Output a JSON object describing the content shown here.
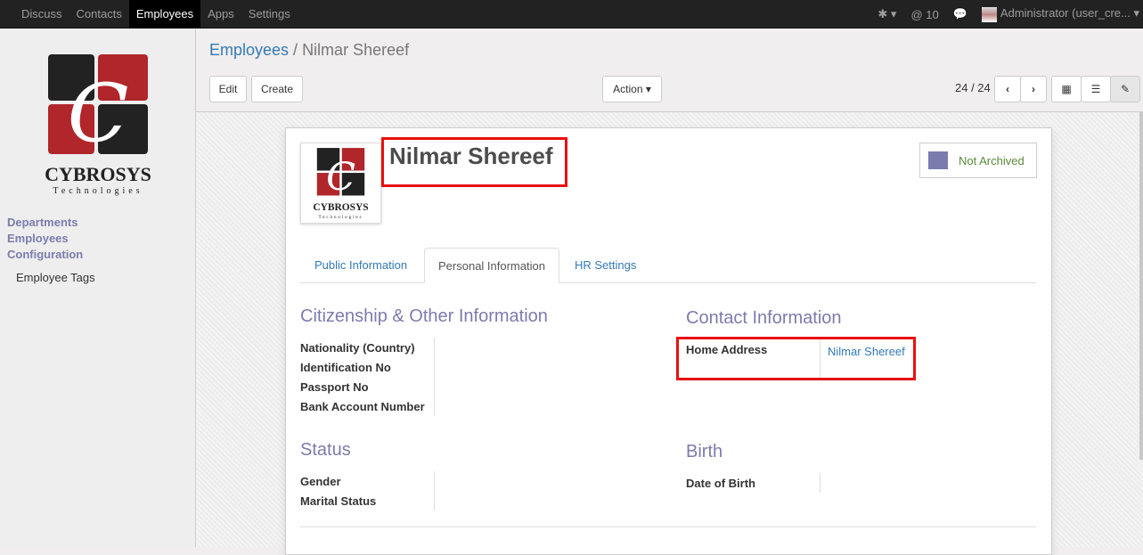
{
  "topnav": {
    "items": [
      "Discuss",
      "Contacts",
      "Employees",
      "Apps",
      "Settings"
    ],
    "active": "Employees",
    "mentions": "10",
    "user": "Administrator (user_cre..."
  },
  "sidebar": {
    "logo_text": "CYBROSYS",
    "logo_sub": "Technologies",
    "sections": [
      "Departments",
      "Employees",
      "Configuration"
    ],
    "sub_items": [
      "Employee Tags"
    ]
  },
  "control": {
    "breadcrumb_parent": "Employees",
    "breadcrumb_current": "Nilmar Shereef",
    "edit": "Edit",
    "create": "Create",
    "action": "Action",
    "pager": "24 / 24"
  },
  "form": {
    "name": "Nilmar Shereef",
    "archive": "Not Archived",
    "tabs": [
      "Public Information",
      "Personal Information",
      "HR Settings"
    ],
    "active_tab": "Personal Information",
    "citizenship": {
      "title": "Citizenship & Other Information",
      "fields": [
        "Nationality (Country)",
        "Identification No",
        "Passport No",
        "Bank Account Number"
      ]
    },
    "contact": {
      "title": "Contact Information",
      "home_label": "Home Address",
      "home_value": "Nilmar Shereef"
    },
    "status": {
      "title": "Status",
      "fields": [
        "Gender",
        "Marital Status"
      ]
    },
    "birth": {
      "title": "Birth",
      "fields": [
        "Date of Birth"
      ]
    }
  },
  "colors": {
    "accent": "#7c7bad",
    "link": "#337ab7",
    "highlight": "#e81010"
  }
}
